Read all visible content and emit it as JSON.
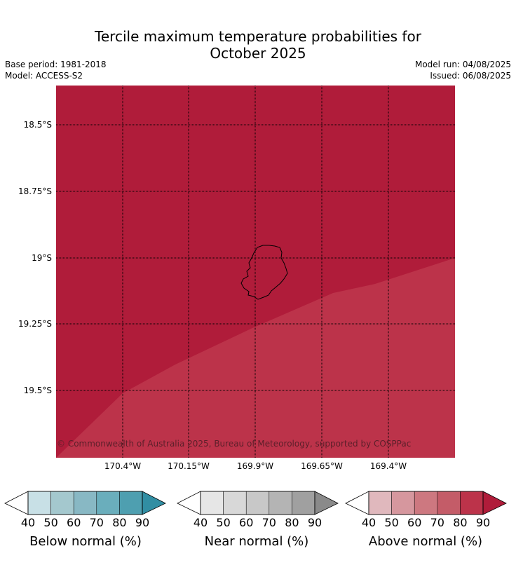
{
  "title_line1": "Tercile maximum temperature probabilities for",
  "title_line2": "October 2025",
  "base_period": "Base period: 1981-2018",
  "model": "Model: ACCESS-S2",
  "model_run": "Model run: 04/08/2025",
  "issued": "Issued: 06/08/2025",
  "lat_labels": [
    "18.5°S",
    "18.75°S",
    "19°S",
    "19.25°S",
    "19.5°S"
  ],
  "lon_labels": [
    "170.4°W",
    "170.15°W",
    "169.9°W",
    "169.65°W",
    "169.4°W"
  ],
  "copyright": "© Commonwealth of Australia 2025, Bureau of Meteorology, supported by COSPPac",
  "map_colors": {
    "above_90": "#b01c3a",
    "above_80": "#bc334a"
  },
  "colorbars": [
    {
      "label": "Below normal (%)",
      "ticks": [
        "40",
        "50",
        "60",
        "70",
        "80",
        "90"
      ],
      "colors": [
        "#c8e0e6",
        "#a4c8ce",
        "#88b8c4",
        "#6aaebc",
        "#4e9fb0",
        "#318ea3"
      ]
    },
    {
      "label": "Near normal (%)",
      "ticks": [
        "40",
        "50",
        "60",
        "70",
        "80",
        "90"
      ],
      "colors": [
        "#e6e6e6",
        "#d8d8d8",
        "#c8c8c8",
        "#b4b4b4",
        "#a0a0a0",
        "#8a8a8a"
      ]
    },
    {
      "label": "Above normal (%)",
      "ticks": [
        "40",
        "50",
        "60",
        "70",
        "80",
        "90"
      ],
      "colors": [
        "#e0b8bd",
        "#d6979e",
        "#cd7880",
        "#c45c68",
        "#bc334a",
        "#b01c3a"
      ]
    }
  ]
}
